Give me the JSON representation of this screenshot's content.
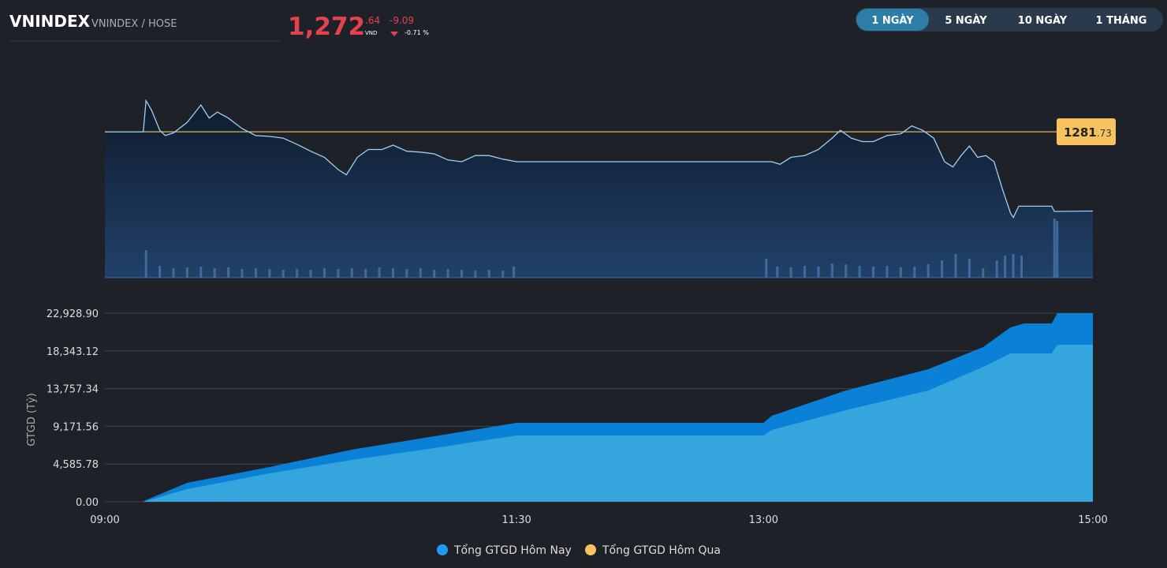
{
  "header": {
    "symbol": "VNINDEX",
    "exchange": "VNINDEX / HOSE",
    "price_int": "1,272",
    "price_dec": ".64",
    "currency": "VND",
    "change": "-9.09",
    "change_pct": "-0.71 %"
  },
  "tabs": [
    {
      "label": "1 NGÀY",
      "active": true
    },
    {
      "label": "5 NGÀY",
      "active": false
    },
    {
      "label": "10 NGÀY",
      "active": false
    },
    {
      "label": "1 THÁNG",
      "active": false
    }
  ],
  "chart_data": [
    {
      "type": "line",
      "color": "#9fd0f0",
      "xlim": [
        "09:00",
        "15:00"
      ],
      "ylim": [
        1265,
        1288.7
      ],
      "reference": {
        "value": 1281.73,
        "label_int": "1281",
        "label_dec": ".73",
        "color": "#f7c35f"
      },
      "x": [
        "09:00",
        "09:14",
        "09:15",
        "09:17",
        "09:20",
        "09:22",
        "09:25",
        "09:30",
        "09:35",
        "09:38",
        "09:41",
        "09:45",
        "09:50",
        "09:55",
        "10:00",
        "10:05",
        "10:10",
        "10:15",
        "10:20",
        "10:25",
        "10:28",
        "10:32",
        "10:36",
        "10:41",
        "10:45",
        "10:50",
        "10:55",
        "11:00",
        "11:05",
        "11:10",
        "11:15",
        "11:20",
        "11:25",
        "11:30",
        "13:00",
        "13:03",
        "13:06",
        "13:10",
        "13:15",
        "13:20",
        "13:25",
        "13:28",
        "13:32",
        "13:36",
        "13:40",
        "13:45",
        "13:50",
        "13:54",
        "13:58",
        "14:02",
        "14:06",
        "14:09",
        "14:12",
        "14:15",
        "14:18",
        "14:21",
        "14:24",
        "14:27",
        "14:30",
        "14:31",
        "14:33",
        "14:45",
        "14:46",
        "15:00"
      ],
      "values": [
        1281.73,
        1281.73,
        1285.3,
        1284.2,
        1281.9,
        1281.3,
        1281.6,
        1282.8,
        1284.8,
        1283.3,
        1284.0,
        1283.3,
        1282.1,
        1281.3,
        1281.2,
        1281.0,
        1280.3,
        1279.5,
        1278.8,
        1277.4,
        1276.8,
        1278.8,
        1279.7,
        1279.7,
        1280.2,
        1279.5,
        1279.4,
        1279.2,
        1278.5,
        1278.3,
        1279.0,
        1279.0,
        1278.6,
        1278.3,
        1278.3,
        1278.3,
        1278.0,
        1278.8,
        1279.0,
        1279.7,
        1281.0,
        1281.9,
        1281.0,
        1280.6,
        1280.6,
        1281.3,
        1281.5,
        1282.4,
        1281.9,
        1281.0,
        1278.3,
        1277.7,
        1279.0,
        1280.1,
        1278.8,
        1279.0,
        1278.3,
        1275.2,
        1272.4,
        1271.9,
        1273.2,
        1273.2,
        1272.6,
        1272.64
      ],
      "volume": {
        "color": "#4a7bb0",
        "vlim": [
          0,
          100
        ],
        "x": [
          "09:15",
          "09:20",
          "09:25",
          "09:30",
          "09:35",
          "09:40",
          "09:45",
          "09:50",
          "09:55",
          "10:00",
          "10:05",
          "10:10",
          "10:15",
          "10:20",
          "10:25",
          "10:30",
          "10:35",
          "10:40",
          "10:45",
          "10:50",
          "10:55",
          "11:00",
          "11:05",
          "11:10",
          "11:15",
          "11:20",
          "11:25",
          "11:29",
          "13:01",
          "13:05",
          "13:10",
          "13:15",
          "13:20",
          "13:25",
          "13:30",
          "13:35",
          "13:40",
          "13:45",
          "13:50",
          "13:55",
          "14:00",
          "14:05",
          "14:10",
          "14:15",
          "14:20",
          "14:25",
          "14:28",
          "14:31",
          "14:34",
          "14:46",
          "14:47"
        ],
        "values": [
          35,
          15,
          12,
          13,
          14,
          12,
          13,
          11,
          12,
          11,
          10,
          11,
          10,
          12,
          11,
          12,
          11,
          13,
          12,
          11,
          12,
          10,
          11,
          10,
          9,
          10,
          9,
          14,
          24,
          14,
          13,
          15,
          14,
          18,
          17,
          15,
          14,
          15,
          13,
          14,
          17,
          22,
          30,
          24,
          12,
          22,
          28,
          30,
          28,
          75,
          72
        ]
      }
    },
    {
      "type": "area",
      "ylabel": "GTGD (Tỷ)",
      "xlim": [
        "09:00",
        "15:00"
      ],
      "xticks": [
        "09:00",
        "11:30",
        "13:00",
        "15:00"
      ],
      "ylim": [
        0,
        22928.9
      ],
      "yticks": [
        {
          "value": 0,
          "label": "0.00"
        },
        {
          "value": 4585.78,
          "label": "4,585.78"
        },
        {
          "value": 9171.56,
          "label": "9,171.56"
        },
        {
          "value": 13757.34,
          "label": "13,757.34"
        },
        {
          "value": 18343.12,
          "label": "18,343.12"
        },
        {
          "value": 22928.9,
          "label": "22,928.90"
        }
      ],
      "grid": true,
      "x": [
        "09:00",
        "09:14",
        "09:15",
        "09:30",
        "10:00",
        "10:30",
        "11:00",
        "11:30",
        "13:00",
        "13:03",
        "13:30",
        "14:00",
        "14:20",
        "14:30",
        "14:35",
        "14:45",
        "14:47",
        "15:00"
      ],
      "series": [
        {
          "name": "Tổng GTGD Hôm Nay",
          "color": "#0a80d6",
          "legend_color": "#1c9cf0",
          "values": [
            0,
            0,
            200,
            2300,
            4220,
            6330,
            7960,
            9590,
            9590,
            10460,
            13530,
            16120,
            18800,
            21200,
            21680,
            21680,
            22928.9,
            22928.9
          ]
        },
        {
          "name": "Tổng GTGD Hôm Qua",
          "color": "#35a5dd",
          "legend_color": "#f7c35f",
          "values": [
            0,
            0,
            100,
            1535,
            3450,
            5085,
            6520,
            8060,
            8060,
            8730,
            11130,
            13530,
            16400,
            18040,
            18040,
            18040,
            19090,
            19090
          ]
        }
      ]
    }
  ]
}
